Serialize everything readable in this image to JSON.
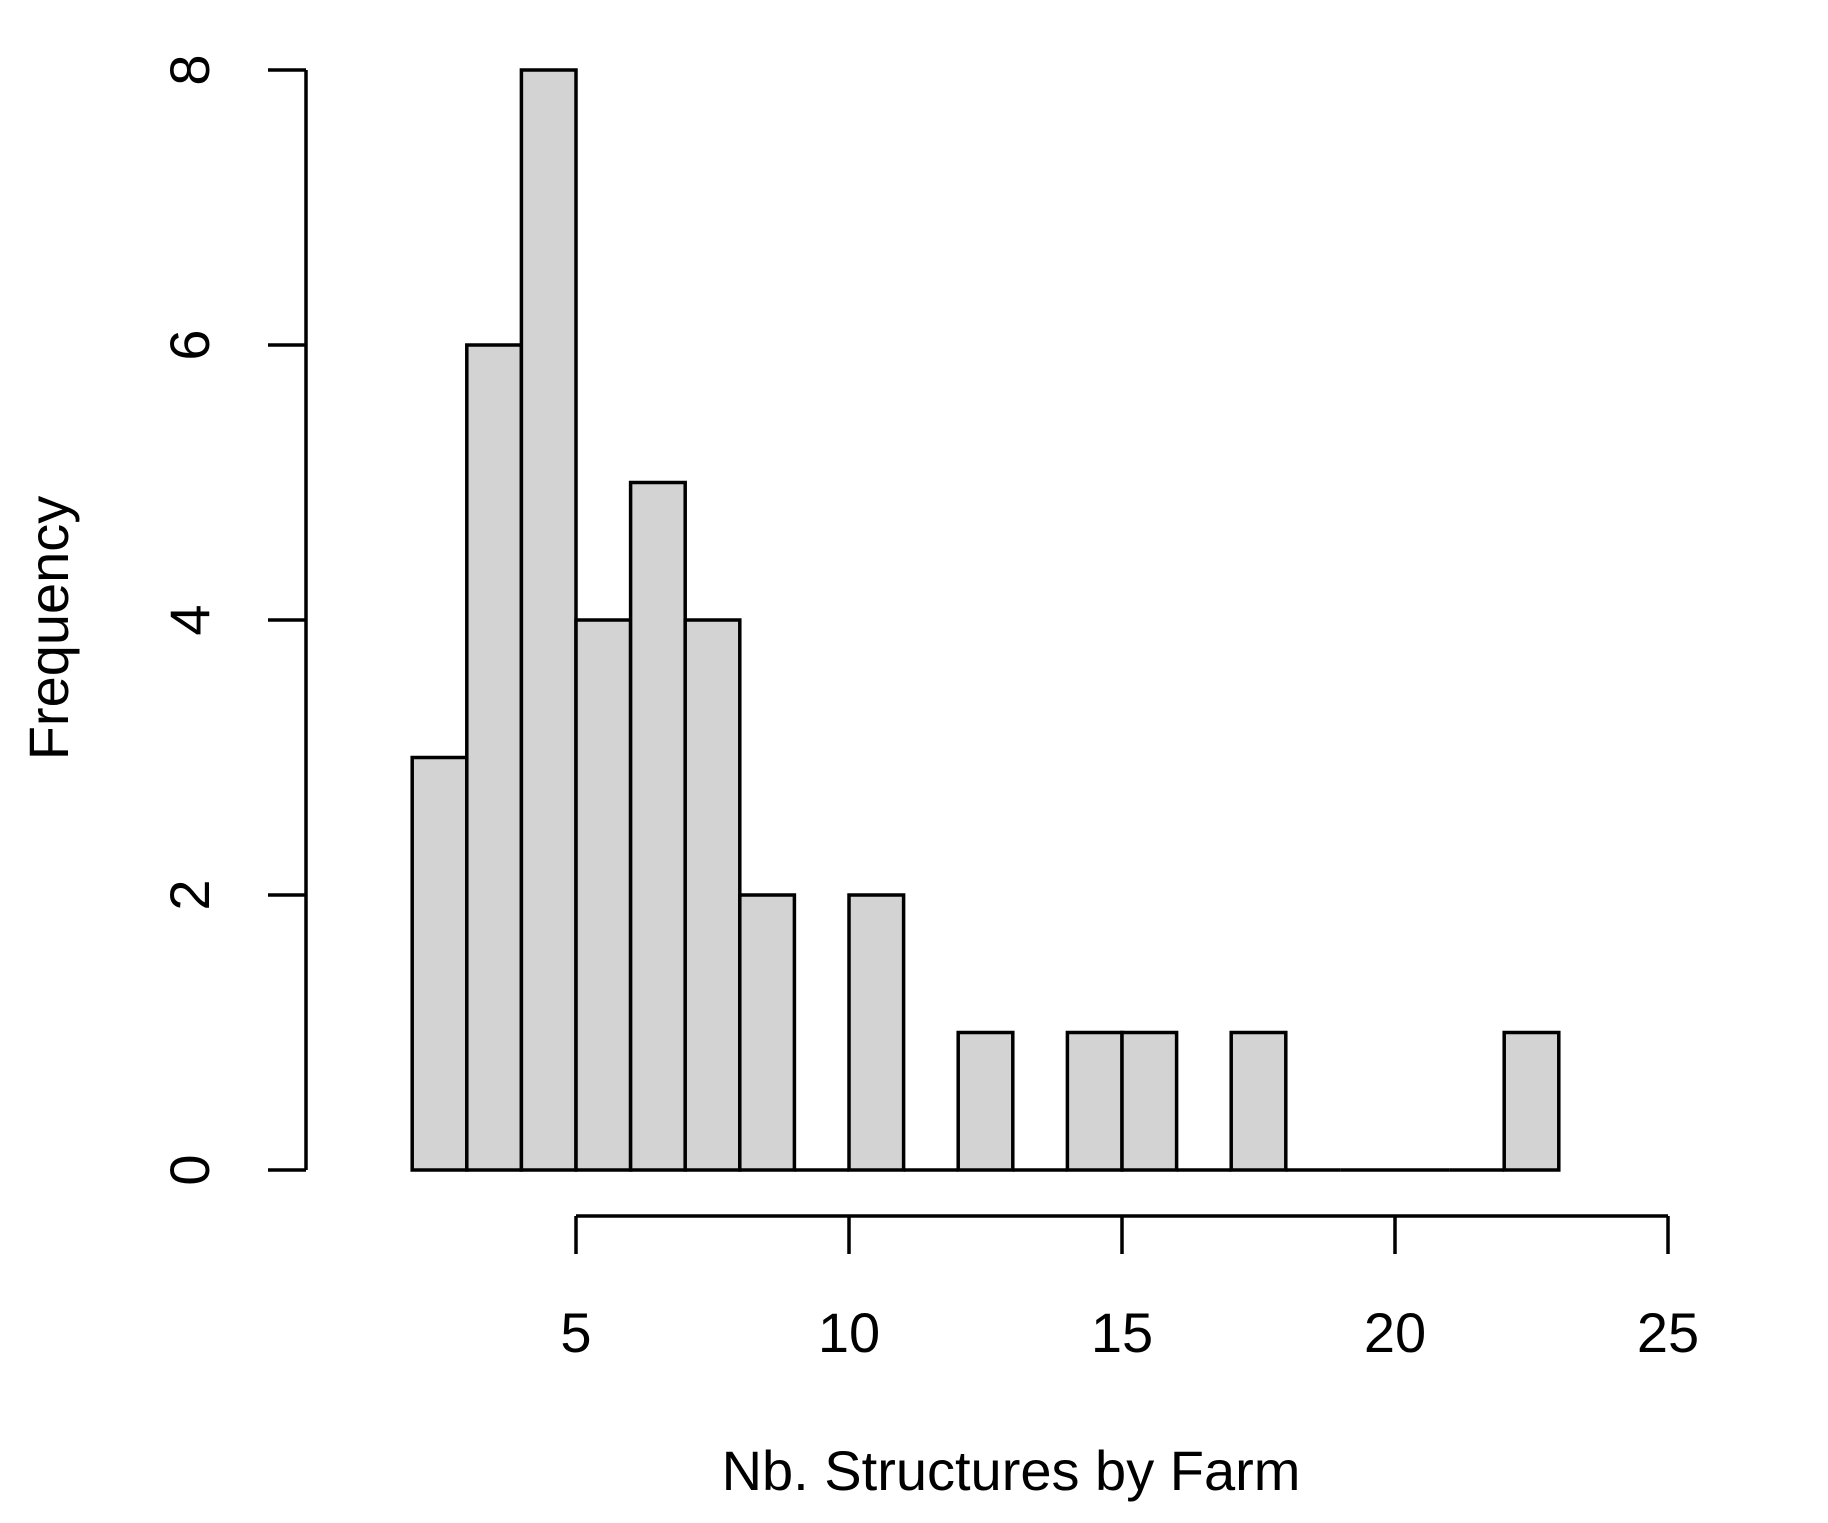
{
  "chart_data": {
    "type": "bar",
    "subtype": "histogram",
    "xlabel": "Nb. Structures by Farm",
    "ylabel": "Frequency",
    "bin_edges": [
      2,
      3,
      4,
      5,
      6,
      7,
      8,
      9,
      10,
      11,
      12,
      13,
      14,
      15,
      16,
      17,
      18,
      19,
      20,
      21,
      22,
      23
    ],
    "counts": [
      3,
      6,
      8,
      4,
      5,
      4,
      2,
      0,
      2,
      0,
      1,
      0,
      1,
      1,
      0,
      1,
      0,
      0,
      0,
      0,
      1
    ],
    "xlim": [
      2,
      25
    ],
    "ylim": [
      0,
      8
    ],
    "x_ticks": [
      5,
      10,
      15,
      20,
      25
    ],
    "y_ticks": [
      0,
      2,
      4,
      6,
      8
    ],
    "x_tick_labels": [
      "5",
      "10",
      "15",
      "20",
      "25"
    ],
    "y_tick_labels": [
      "0",
      "2",
      "4",
      "6",
      "8"
    ],
    "bar_fill": "#d3d3d3",
    "bar_edge": "#000000",
    "grid": false,
    "legend": false
  }
}
